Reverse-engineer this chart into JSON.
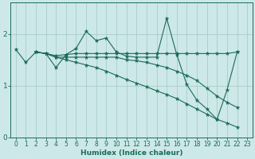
{
  "xlabel": "Humidex (Indice chaleur)",
  "bg_color": "#cde8e8",
  "grid_color": "#aacccc",
  "line_color": "#1a6b5a",
  "xlim": [
    -0.5,
    23.5
  ],
  "ylim": [
    0,
    2.6
  ],
  "yticks": [
    0,
    1,
    2
  ],
  "xticks": [
    0,
    1,
    2,
    3,
    4,
    5,
    6,
    7,
    8,
    9,
    10,
    11,
    12,
    13,
    14,
    15,
    16,
    17,
    18,
    19,
    20,
    21,
    22,
    23
  ],
  "series": [
    {
      "x": [
        0,
        1,
        2,
        3,
        4,
        5,
        6,
        7,
        8,
        9,
        10,
        11,
        12,
        13,
        14,
        15,
        16,
        17,
        18,
        19,
        20,
        21,
        22
      ],
      "y": [
        1.7,
        1.45,
        1.65,
        1.62,
        1.35,
        1.6,
        1.72,
        2.05,
        1.87,
        1.92,
        1.65,
        1.57,
        1.55,
        1.55,
        1.55,
        2.3,
        1.6,
        1.02,
        0.72,
        0.55,
        0.35,
        0.92,
        1.65
      ]
    },
    {
      "x": [
        2,
        3,
        4,
        5,
        6,
        7,
        8,
        9,
        10,
        11,
        12,
        13,
        14,
        15,
        16,
        17,
        18,
        19,
        20,
        21,
        22
      ],
      "y": [
        1.65,
        1.62,
        1.58,
        1.6,
        1.62,
        1.62,
        1.62,
        1.62,
        1.62,
        1.62,
        1.62,
        1.62,
        1.62,
        1.62,
        1.62,
        1.62,
        1.62,
        1.62,
        1.62,
        1.62,
        1.65
      ]
    },
    {
      "x": [
        2,
        3,
        4,
        5,
        6,
        7,
        8,
        9,
        10,
        11,
        12,
        13,
        14,
        15,
        16,
        17,
        18,
        19,
        20,
        21,
        22
      ],
      "y": [
        1.65,
        1.62,
        1.55,
        1.55,
        1.55,
        1.55,
        1.55,
        1.55,
        1.55,
        1.5,
        1.48,
        1.45,
        1.4,
        1.35,
        1.28,
        1.2,
        1.1,
        0.95,
        0.8,
        0.68,
        0.58
      ]
    },
    {
      "x": [
        2,
        3,
        4,
        5,
        6,
        7,
        8,
        9,
        10,
        11,
        12,
        13,
        14,
        15,
        16,
        17,
        18,
        19,
        20,
        21,
        22
      ],
      "y": [
        1.65,
        1.62,
        1.55,
        1.5,
        1.45,
        1.4,
        1.35,
        1.28,
        1.2,
        1.12,
        1.05,
        0.98,
        0.9,
        0.83,
        0.75,
        0.65,
        0.55,
        0.45,
        0.35,
        0.28,
        0.2
      ]
    }
  ]
}
